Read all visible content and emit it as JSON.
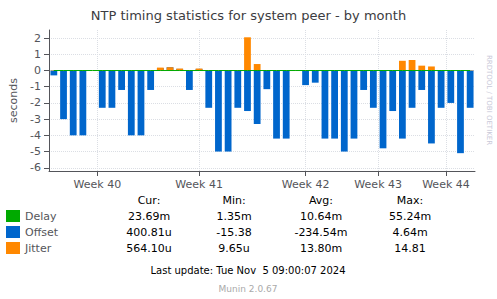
{
  "chart_data": {
    "type": "bar",
    "title": "NTP timing statistics for system peer - by month",
    "ylabel": "seconds",
    "x": [
      0,
      1,
      2,
      3,
      4,
      5,
      6,
      7,
      8,
      9,
      10,
      11,
      12,
      13,
      14,
      15,
      16,
      17,
      18,
      19,
      20,
      21,
      22,
      23,
      24,
      25,
      26,
      27,
      28,
      29,
      30,
      31,
      32,
      33,
      34,
      35,
      36,
      37,
      38,
      39,
      40,
      41,
      42,
      43
    ],
    "xlim": [
      -0.5,
      43.5
    ],
    "xticks": [
      {
        "value": 4.5,
        "label": "Week 40"
      },
      {
        "value": 15.0,
        "label": "Week 41"
      },
      {
        "value": 26.0,
        "label": "Week 42"
      },
      {
        "value": 33.5,
        "label": "Week 43"
      },
      {
        "value": 40.5,
        "label": "Week 44"
      }
    ],
    "ylim": [
      -6.2,
      2.5
    ],
    "yticks": [
      -6,
      -5,
      -4,
      -3,
      -2,
      -1,
      0,
      1,
      2
    ],
    "grid": true,
    "legend": "bottom",
    "series": [
      {
        "name": "Delay",
        "type": "line",
        "color": "#00aa00",
        "values": [
          0,
          0,
          0,
          0,
          0,
          0,
          0,
          0,
          0,
          0,
          0,
          0,
          0,
          0,
          0,
          0,
          0,
          0,
          0,
          0,
          0,
          0,
          0,
          0,
          0,
          0,
          0,
          0,
          0,
          0,
          0,
          0,
          0,
          0,
          0,
          0,
          0,
          0,
          0,
          0,
          0,
          0,
          0,
          0
        ]
      },
      {
        "name": "Offset",
        "type": "bar",
        "color": "#0066cc",
        "values": [
          -0.3,
          -3.0,
          -4.0,
          -4.0,
          0.0,
          -2.3,
          -2.3,
          -1.2,
          -4.0,
          -4.0,
          -1.2,
          0.15,
          0.2,
          0.1,
          -1.2,
          0.1,
          -2.3,
          -5.0,
          -5.0,
          -2.3,
          -2.5,
          -3.3,
          -1.15,
          -4.2,
          -4.2,
          0.0,
          -0.9,
          -0.75,
          -4.2,
          -4.2,
          -5.0,
          -4.2,
          -1.2,
          -2.3,
          -4.8,
          -2.5,
          -4.2,
          -2.3,
          -1.2,
          -4.5,
          -2.3,
          -2.0,
          -5.1,
          -2.3
        ]
      },
      {
        "name": "Jitter",
        "type": "bar",
        "color": "#ff8800",
        "values": [
          0.02,
          0.02,
          0.02,
          0.02,
          0.02,
          0.02,
          0.02,
          0.02,
          0.02,
          0.02,
          0.02,
          0.18,
          0.2,
          0.12,
          0.02,
          0.12,
          0.02,
          0.02,
          0.02,
          0.02,
          2.05,
          0.4,
          0.02,
          0.02,
          0.02,
          0.02,
          0.02,
          0.02,
          0.02,
          0.02,
          0.02,
          0.02,
          0.02,
          0.02,
          0.02,
          0.02,
          0.6,
          0.65,
          0.3,
          0.25,
          0.02,
          0.02,
          0.02,
          0.02
        ]
      }
    ],
    "annotations": {
      "stats_headers": [
        "Cur:",
        "Min:",
        "Avg:",
        "Max:"
      ],
      "stats": [
        [
          "23.69m",
          "1.35m",
          "10.64m",
          "55.24m"
        ],
        [
          "400.81u",
          "-15.38",
          "-234.54m",
          "4.64m"
        ],
        [
          "564.10u",
          "9.65u",
          "13.80m",
          "14.81"
        ]
      ],
      "footer": [
        "Last update: Tue Nov  5 09:00:07 2024",
        "Munin 2.0.67"
      ],
      "watermark": "RRDTOOL / TOBI OETIKER"
    }
  }
}
